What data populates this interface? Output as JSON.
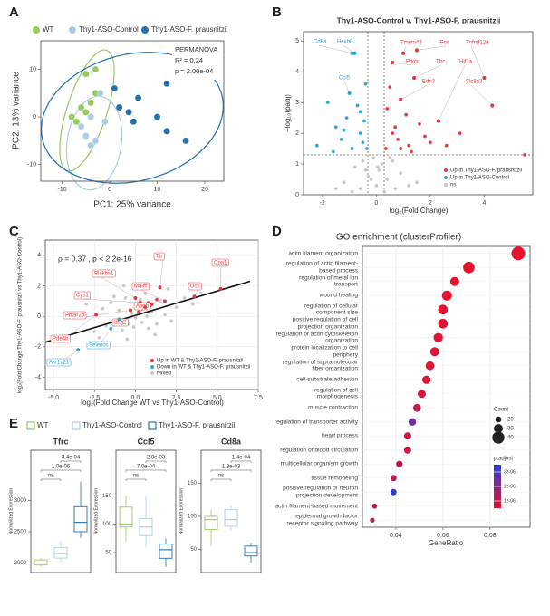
{
  "chart_data": [
    {
      "panel": "A",
      "type": "scatter",
      "xlabel": "PC1: 25% variance",
      "ylabel": "PC2: 13% variance",
      "annotations": [
        "PERMANOVA",
        "R² = 0.24",
        "p = 2.00e-04"
      ],
      "xlim": [
        -14.5,
        24
      ],
      "ylim": [
        -13.5,
        16
      ],
      "xticks": [
        -10,
        0,
        10,
        20
      ],
      "yticks": [
        -10,
        0,
        10
      ],
      "series": [
        {
          "name": "WT",
          "color": "#98c95f",
          "x": [
            -5,
            -3,
            -6,
            -5,
            -8,
            -4,
            -3,
            -7
          ],
          "y": [
            9,
            10,
            2,
            1,
            0,
            3,
            5,
            -1
          ]
        },
        {
          "name": "Thy1-ASO-Control",
          "color": "#a9cde6",
          "x": [
            -5,
            -3,
            -1,
            -4,
            -6,
            -2,
            -4,
            1
          ],
          "y": [
            -4,
            -5,
            -1,
            0,
            -2,
            5,
            -6,
            6
          ]
        },
        {
          "name": "Thy1-ASO-F. prausnitzii",
          "color": "#2471b0",
          "x": [
            1,
            6,
            4,
            12,
            10,
            12,
            16,
            5,
            2
          ],
          "y": [
            6,
            4,
            1,
            7,
            0,
            -3,
            -5,
            -1,
            2
          ]
        }
      ]
    },
    {
      "panel": "B",
      "type": "volcano",
      "title": "Thy1-ASO-Control v. Thy1-ASO-F. prausnitzii",
      "xlabel": "log₂(Fold Change)",
      "ylabel": "−log₁₀(padj)",
      "xlim": [
        -2.7,
        5.8
      ],
      "ylim": [
        0,
        5.3
      ],
      "xticks": [
        -2,
        0,
        2,
        4
      ],
      "yticks": [
        0,
        1,
        2,
        3,
        4,
        5
      ],
      "series": [
        {
          "name": "Up in Thy1-ASO-F. prausnitzii",
          "color": "#e8363a",
          "x": [
            0.35,
            0.4,
            0.5,
            0.6,
            0.7,
            0.8,
            0.9,
            1.0,
            1.1,
            1.2,
            1.4,
            1.6,
            1.8,
            2.0,
            2.3,
            2.6,
            3.1,
            4.0,
            4.3,
            5.5,
            0.9,
            1.5,
            0.6,
            1.3
          ],
          "y": [
            1.5,
            2.8,
            3.5,
            4.3,
            2.2,
            1.8,
            3.1,
            4.6,
            2.6,
            1.6,
            3.8,
            2.3,
            1.9,
            1.7,
            2.4,
            1.6,
            2.0,
            3.8,
            2.9,
            1.3,
            1.5,
            4.7,
            2.0,
            1.4
          ]
        },
        {
          "name": "Up in Thy1-ASO-Control",
          "color": "#2aa3d6",
          "x": [
            -2.2,
            -1.8,
            -1.5,
            -1.3,
            -1.1,
            -1.0,
            -0.9,
            -0.8,
            -0.7,
            -0.6,
            -0.5,
            -0.45,
            -0.4,
            -0.35,
            -1.6,
            -0.9,
            -0.6,
            -1.2
          ],
          "y": [
            1.6,
            3.0,
            2.2,
            1.8,
            2.5,
            3.3,
            4.6,
            4.6,
            2.9,
            2.0,
            1.7,
            2.4,
            3.6,
            1.5,
            1.4,
            1.5,
            2.7,
            2.1
          ]
        },
        {
          "name": "ns",
          "color": "#c8c8c8",
          "x": [
            -1.2,
            -0.8,
            -0.5,
            -0.3,
            -0.1,
            0,
            0.1,
            0.2,
            0.4,
            0.6,
            0.9,
            1.2,
            -0.6,
            0.3,
            -0.2,
            0.5,
            -1.5,
            1.5,
            0.05,
            -0.4,
            0.7,
            -0.9
          ],
          "y": [
            0.4,
            0.9,
            1.1,
            0.6,
            1.2,
            0.3,
            0.8,
            1.0,
            0.5,
            1.1,
            0.7,
            0.3,
            0.2,
            0.1,
            0.5,
            1.2,
            0.2,
            0.4,
            0.9,
            0.8,
            0.2,
            0.1
          ]
        }
      ],
      "gene_labels": [
        {
          "label": "Cd8a",
          "x": -0.9,
          "y": 4.6
        },
        {
          "label": "Hexb8",
          "x": -0.8,
          "y": 4.6
        },
        {
          "label": "Ccl5",
          "x": -1.0,
          "y": 3.3
        },
        {
          "label": "Tmem43",
          "x": 1.0,
          "y": 4.6
        },
        {
          "label": "Fos",
          "x": 1.5,
          "y": 4.7
        },
        {
          "label": "Tnfrsf12a",
          "x": 4.0,
          "y": 3.8
        },
        {
          "label": "Prkci",
          "x": 0.6,
          "y": 4.3
        },
        {
          "label": "Tfrc",
          "x": 1.4,
          "y": 3.8
        },
        {
          "label": "Hif1a",
          "x": 2.3,
          "y": 2.4
        },
        {
          "label": "Edn3",
          "x": 0.9,
          "y": 3.1
        },
        {
          "label": "Slc8a3",
          "x": 4.3,
          "y": 2.9
        }
      ]
    },
    {
      "panel": "C",
      "type": "scatter",
      "annotation": "ρ = 0.37 , p < 2.2e-16",
      "xlabel": "log₂(Fold Change WT vs Thy1-ASO-Control)",
      "ylabel": "log₂(Fold Change Thy1-ASO-F. prausnitzii vs Thy1-ASO-Control)",
      "xlim": [
        -5.5,
        7.5
      ],
      "ylim": [
        -4.8,
        5
      ],
      "xticks": [
        {
          "value": -5,
          "label": "-5.0"
        },
        {
          "value": -2.5,
          "label": "-2.5"
        },
        {
          "value": 0,
          "label": "0.0"
        },
        {
          "value": 2.5,
          "label": "2.5"
        },
        {
          "value": 5,
          "label": "5.0"
        },
        {
          "value": 7.5,
          "label": "7.5"
        }
      ],
      "yticks": [
        -4,
        -2,
        0,
        2,
        4
      ],
      "grid": true,
      "series": [
        {
          "name": "Up in WT & Thy1-ASO-F. prausnitzii",
          "color": "#e8363a",
          "x": [
            0.2,
            0.5,
            0.8,
            1.0,
            1.3,
            0.4,
            0.9
          ],
          "y": [
            0.3,
            0.6,
            0.9,
            0.8,
            1.1,
            0.5,
            0.7
          ]
        },
        {
          "name": "Down in WT & Thy1-ASO-F. prausnitzii",
          "color": "#2aa3d6",
          "x": [
            -3.5,
            -1.0,
            -2.8,
            -1.5
          ],
          "y": [
            -2.2,
            -0.2,
            -1.8,
            -0.8
          ]
        },
        {
          "name": "Mixed",
          "color": "#c8c8c8",
          "x": [
            -3,
            -2.5,
            -2,
            -1.8,
            -1.5,
            -1.2,
            -1,
            -0.8,
            -0.6,
            -0.4,
            -0.2,
            0,
            0.2,
            0.4,
            0.6,
            0.8,
            1,
            1.2,
            1.5,
            1.8,
            2,
            2.5,
            3,
            3.5,
            4,
            -0.5,
            0.3,
            -1.3,
            1.3,
            0.1,
            -0.1,
            2.2,
            -2.2,
            0.7,
            -0.7
          ],
          "y": [
            0.8,
            -1,
            0.5,
            -0.6,
            0.9,
            -0.3,
            0.4,
            -0.9,
            1.2,
            -0.5,
            0.2,
            -0.1,
            0.6,
            -0.4,
            1.5,
            -0.8,
            0.3,
            -1.2,
            1.0,
            0.1,
            1.8,
            0.6,
            1.2,
            0.8,
            1.5,
            -1.5,
            1.1,
            1.3,
            -0.5,
            0.7,
            -0.7,
            -0.3,
            -1.4,
            0.0,
            2.0
          ]
        }
      ],
      "fit_line": {
        "x": [
          -5.5,
          7
        ],
        "y": [
          -1.7,
          2.3
        ]
      },
      "gene_labels": [
        {
          "label": "Ttr",
          "x": 1.5,
          "y": 1.9
        },
        {
          "label": "Cpa1",
          "x": 5.2,
          "y": 1.8
        },
        {
          "label": "Plekhs1",
          "x": 0.0,
          "y": 1.2
        },
        {
          "label": "Malm",
          "x": 1.8,
          "y": 1.0
        },
        {
          "label": "Ucs",
          "x": 3.6,
          "y": 1.3
        },
        {
          "label": "Cys1",
          "x": 0.3,
          "y": 0.9
        },
        {
          "label": "Apob",
          "x": 1.0,
          "y": 0.8
        },
        {
          "label": "Prkar2b",
          "x": -0.3,
          "y": 0.4
        },
        {
          "label": "Itag2",
          "x": 0.6,
          "y": 0.6
        },
        {
          "label": "Pde4b",
          "x": -2.4,
          "y": 0.1
        },
        {
          "label": "Selenos",
          "x": -1.0,
          "y": -0.2
        },
        {
          "label": "Akr1c21",
          "x": -3.5,
          "y": -2.2
        }
      ]
    },
    {
      "panel": "D",
      "type": "dot",
      "title": "GO enrichment (clusterProfiler)",
      "xlabel": "GeneRatio",
      "categories": [
        "actin filament organization",
        "regulation of actin filament-based process",
        "regulation of metal ion transport",
        "wound healing",
        "regulation of cellular component size",
        "positive regulation of cell projection organization",
        "regulation of actin cytoskeleton organization",
        "protein localization to cell periphery",
        "regulation of supramolecular fiber organization",
        "cell-substrate adhesion",
        "regulation of cell morphogenesis",
        "muscle contraction",
        "regulation of transporter activity",
        "heart process",
        "regulation of blood circulation",
        "multicellular organism growth",
        "tissue remodeling",
        "positive regulation of neuron projection development",
        "actin filament-based movement",
        "epidermal growth factor receptor signaling pathway"
      ],
      "values": [
        0.092,
        0.071,
        0.065,
        0.0617,
        0.06,
        0.06,
        0.058,
        0.0565,
        0.0545,
        0.053,
        0.051,
        0.049,
        0.047,
        0.045,
        0.045,
        0.0415,
        0.039,
        0.039,
        0.031,
        0.03
      ],
      "counts": [
        45,
        38,
        30,
        33,
        32,
        32,
        31,
        30,
        29,
        28,
        27,
        26,
        25,
        24,
        24,
        22,
        21,
        21,
        17,
        16
      ],
      "p_adjust": [
        5e-07,
        5e-07,
        5e-07,
        5e-07,
        6e-07,
        6e-07,
        6e-07,
        6e-07,
        7e-07,
        7e-07,
        8e-07,
        1e-06,
        2.4e-06,
        8e-07,
        9e-07,
        1.1e-06,
        1.2e-06,
        3.4e-06,
        1.3e-06,
        1.3e-06
      ],
      "xlim": [
        0.0258,
        0.097
      ],
      "xticks": [
        0.04,
        0.06,
        0.08
      ],
      "grid": true,
      "size_legend": {
        "title": "Count",
        "values": [
          20,
          30,
          40
        ]
      },
      "color_legend": {
        "title": "p.adjust",
        "lim": [
          5e-07,
          3.5e-06
        ],
        "colors": [
          "#e8112d",
          "#2b3fd8"
        ],
        "ticks": [
          {
            "value": 3e-06,
            "label": "3e-06"
          },
          {
            "value": 2e-06,
            "label": "2e-06"
          },
          {
            "value": 1e-06,
            "label": "1e-06"
          }
        ]
      }
    },
    {
      "panel": "E",
      "type": "box",
      "ylabel": "Normalized Expression",
      "groups": [
        {
          "name": "WT",
          "color": "#98c95f"
        },
        {
          "name": "Thy1-ASO-Control",
          "color": "#a9cde6"
        },
        {
          "name": "Thy1-ASO-F. prausnitzii",
          "color": "#2471b0"
        }
      ],
      "panels": [
        {
          "title": "Tfrc",
          "ylim": [
            1850,
            3800
          ],
          "yticks": [
            2000,
            2500,
            3000
          ],
          "boxes": [
            {
              "min": 1950,
              "q1": 1970,
              "median": 2000,
              "q3": 2050,
              "max": 2080
            },
            {
              "min": 2020,
              "q1": 2080,
              "median": 2150,
              "q3": 2250,
              "max": 2350
            },
            {
              "min": 2400,
              "q1": 2500,
              "median": 2650,
              "q3": 2900,
              "max": 3300
            }
          ],
          "comparisons": [
            "3.4e-04",
            "1.0e-06",
            "ns"
          ]
        },
        {
          "title": "Ccl5",
          "ylim": [
            15,
            230
          ],
          "yticks": [
            50,
            100,
            150
          ],
          "boxes": [
            {
              "min": 70,
              "q1": 95,
              "median": 100,
              "q3": 130,
              "max": 150
            },
            {
              "min": 60,
              "q1": 80,
              "median": 95,
              "q3": 110,
              "max": 150
            },
            {
              "min": 25,
              "q1": 40,
              "median": 55,
              "q3": 65,
              "max": 75
            }
          ],
          "comparisons": [
            "2.0e-03",
            "7.0e-04",
            "ns"
          ]
        },
        {
          "title": "Cd8a",
          "ylim": [
            15,
            200
          ],
          "yticks": [
            50,
            100,
            150
          ],
          "boxes": [
            {
              "min": 55,
              "q1": 80,
              "median": 95,
              "q3": 100,
              "max": 110
            },
            {
              "min": 80,
              "q1": 85,
              "median": 95,
              "q3": 110,
              "max": 115
            },
            {
              "min": 30,
              "q1": 40,
              "median": 45,
              "q3": 55,
              "max": 60
            }
          ],
          "comparisons": [
            "1.4e-04",
            "1.3e-03",
            "ns"
          ]
        }
      ]
    }
  ]
}
